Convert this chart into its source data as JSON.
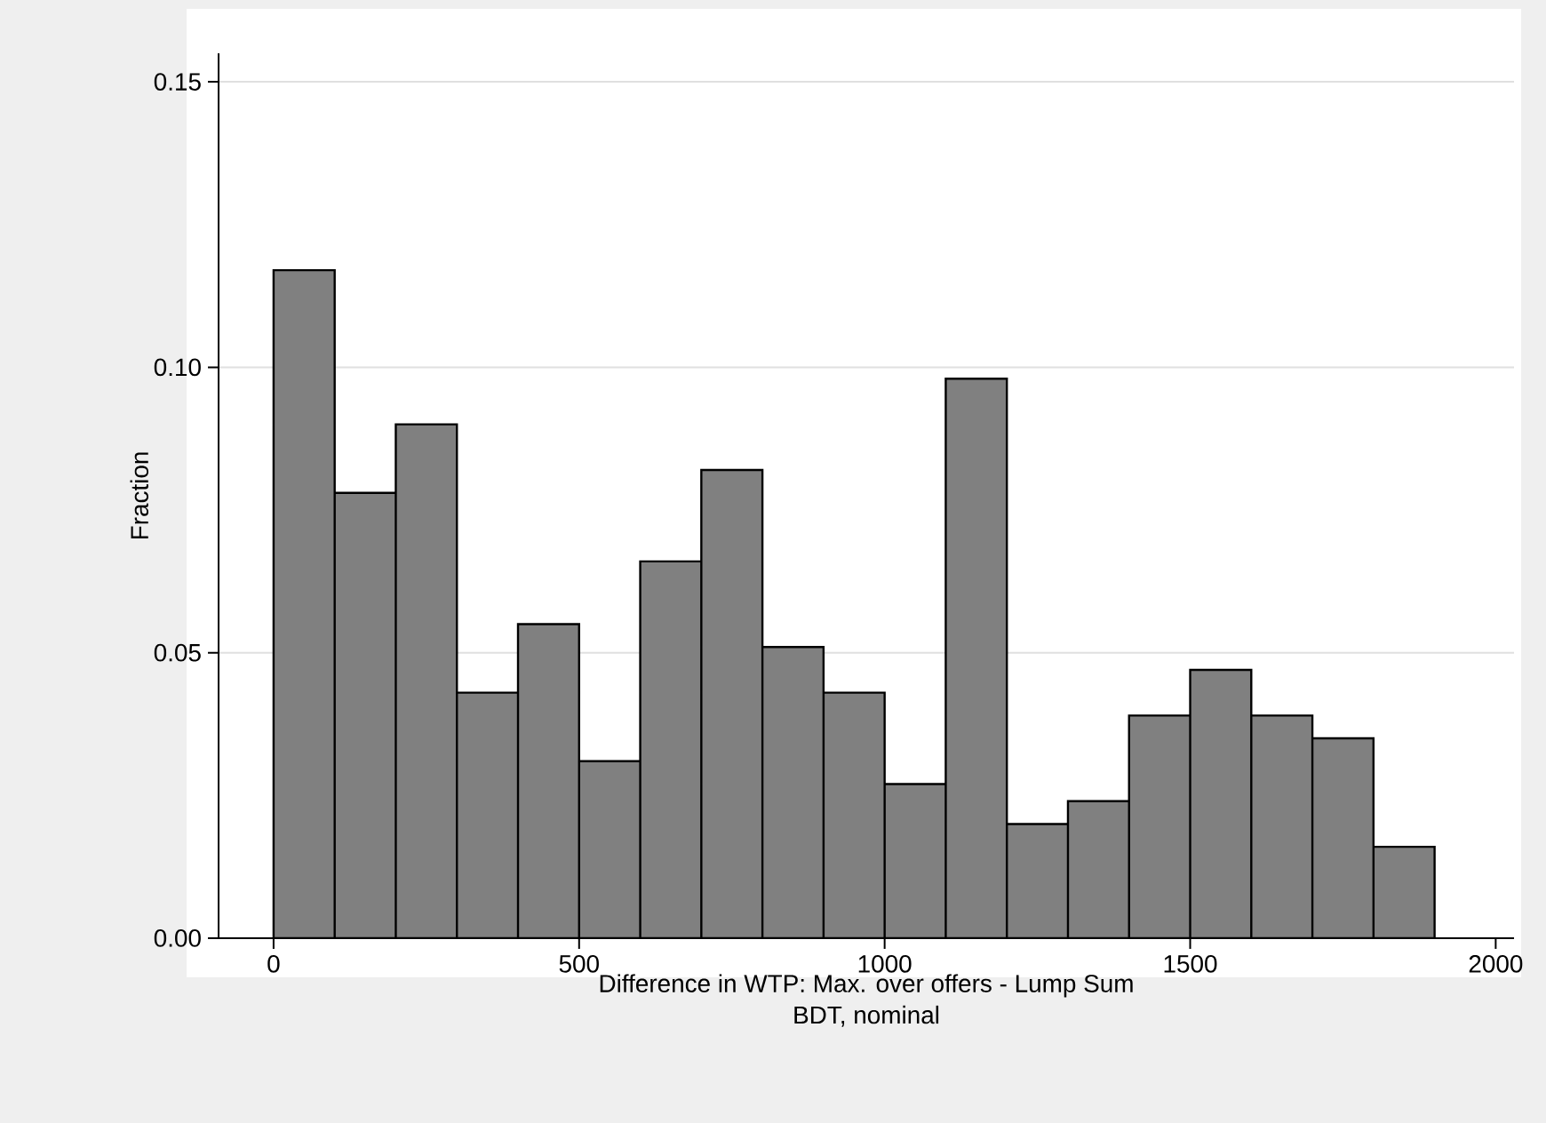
{
  "chart_data": {
    "type": "histogram",
    "xlabel": "Difference in WTP: Max. over offers - Lump Sum",
    "ylabel": "Fraction",
    "annotations": [
      "BDT, nominal"
    ],
    "bins": [
      0,
      100,
      200,
      300,
      400,
      500,
      600,
      700,
      800,
      900,
      1000,
      1100,
      1200,
      1300,
      1400,
      1500,
      1600,
      1700,
      1800,
      1900
    ],
    "values": [
      0.117,
      0.078,
      0.09,
      0.043,
      0.055,
      0.031,
      0.066,
      0.082,
      0.051,
      0.043,
      0.027,
      0.098,
      0.02,
      0.024,
      0.039,
      0.047,
      0.039,
      0.035,
      0.016
    ],
    "color": "#808080",
    "xlim": [
      -90,
      2030
    ],
    "xticks": [
      0,
      500,
      1000,
      1500,
      2000
    ],
    "ylim": [
      0,
      0.155
    ],
    "yticks": [
      {
        "value": 0,
        "label": "0.00"
      },
      {
        "value": 0.05,
        "label": "0.05"
      },
      {
        "value": 0.1,
        "label": "0.10"
      },
      {
        "value": 0.15,
        "label": "0.15"
      }
    ],
    "grid": "y"
  }
}
